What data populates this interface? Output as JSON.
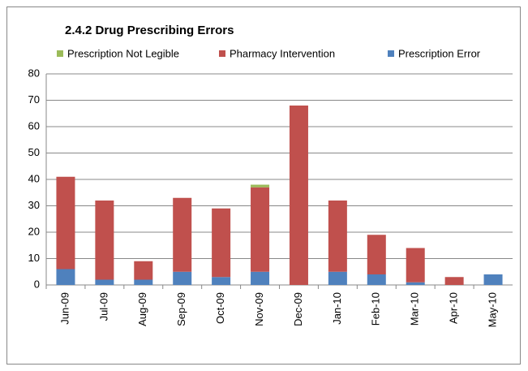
{
  "chart_data": {
    "type": "stacked_bar",
    "title": "2.4.2 Drug Prescribing Errors",
    "categories": [
      "Jun-09",
      "Jul-09",
      "Aug-09",
      "Sep-09",
      "Oct-09",
      "Nov-09",
      "Dec-09",
      "Jan-10",
      "Feb-10",
      "Mar-10",
      "Apr-10",
      "May-10"
    ],
    "series": [
      {
        "name": "Prescription Error",
        "color": "#4f81bd",
        "values": [
          6,
          2,
          2,
          5,
          3,
          5,
          0,
          5,
          4,
          1,
          0,
          4
        ]
      },
      {
        "name": "Pharmacy Intervention",
        "color": "#c0504d",
        "values": [
          35,
          30,
          7,
          28,
          26,
          32,
          68,
          27,
          15,
          13,
          3,
          0
        ]
      },
      {
        "name": "Prescription Not Legible",
        "color": "#9bbb59",
        "values": [
          0,
          0,
          0,
          0,
          0,
          1,
          0,
          0,
          0,
          0,
          0,
          0
        ]
      }
    ],
    "legend_order": [
      2,
      1,
      0
    ],
    "ylim": [
      0,
      80
    ],
    "yticks": [
      0,
      10,
      20,
      30,
      40,
      50,
      60,
      70,
      80
    ],
    "grid": true
  }
}
